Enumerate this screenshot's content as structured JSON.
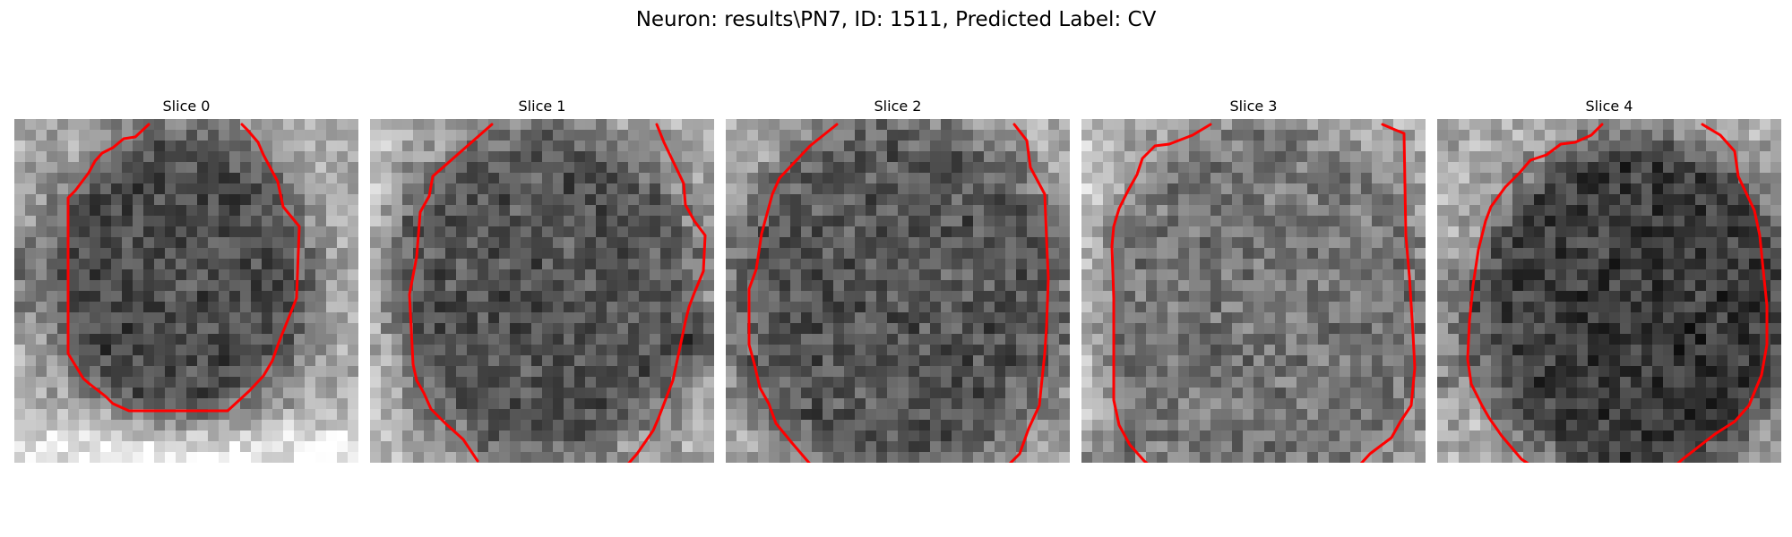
{
  "figure": {
    "title": "Neuron: results\\PN7, ID: 1511, Predicted Label: CV",
    "contour_color": "#ff0000",
    "colormap": "gray"
  },
  "panels": [
    {
      "title": "Slice 0",
      "contour_pattern": "closed-u-shape"
    },
    {
      "title": "Slice 1",
      "contour_pattern": "open-two-lines"
    },
    {
      "title": "Slice 2",
      "contour_pattern": "open-two-lines"
    },
    {
      "title": "Slice 3",
      "contour_pattern": "open-two-lines"
    },
    {
      "title": "Slice 4",
      "contour_pattern": "open-two-lines"
    }
  ]
}
